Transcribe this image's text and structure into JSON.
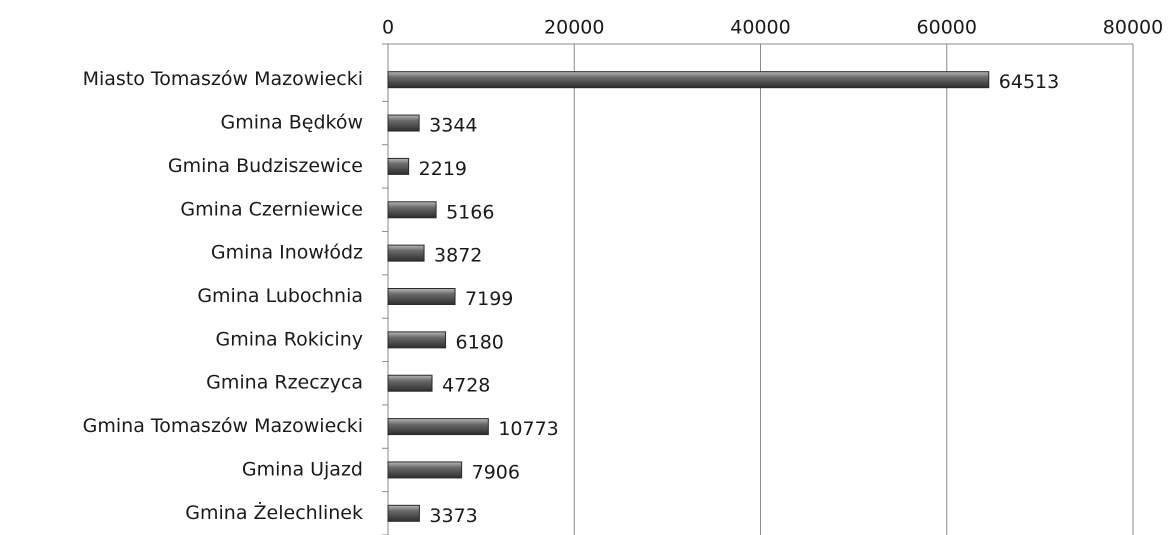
{
  "chart_data": {
    "type": "bar",
    "orientation": "horizontal",
    "categories": [
      "Miasto Tomaszów Mazowiecki",
      "Gmina Będków",
      "Gmina Budziszewice",
      "Gmina Czerniewice",
      "Gmina Inowłódz",
      "Gmina Lubochnia",
      "Gmina Rokiciny",
      "Gmina Rzeczyca",
      "Gmina Tomaszów Mazowiecki",
      "Gmina Ujazd",
      "Gmina Żelechlinek"
    ],
    "values": [
      64513,
      3344,
      2219,
      5166,
      3872,
      7199,
      6180,
      4728,
      10773,
      7906,
      3373
    ],
    "color": "#555555",
    "xlim": [
      0,
      80000
    ],
    "xticks": [
      0,
      20000,
      40000,
      60000,
      80000
    ],
    "grid": true
  }
}
